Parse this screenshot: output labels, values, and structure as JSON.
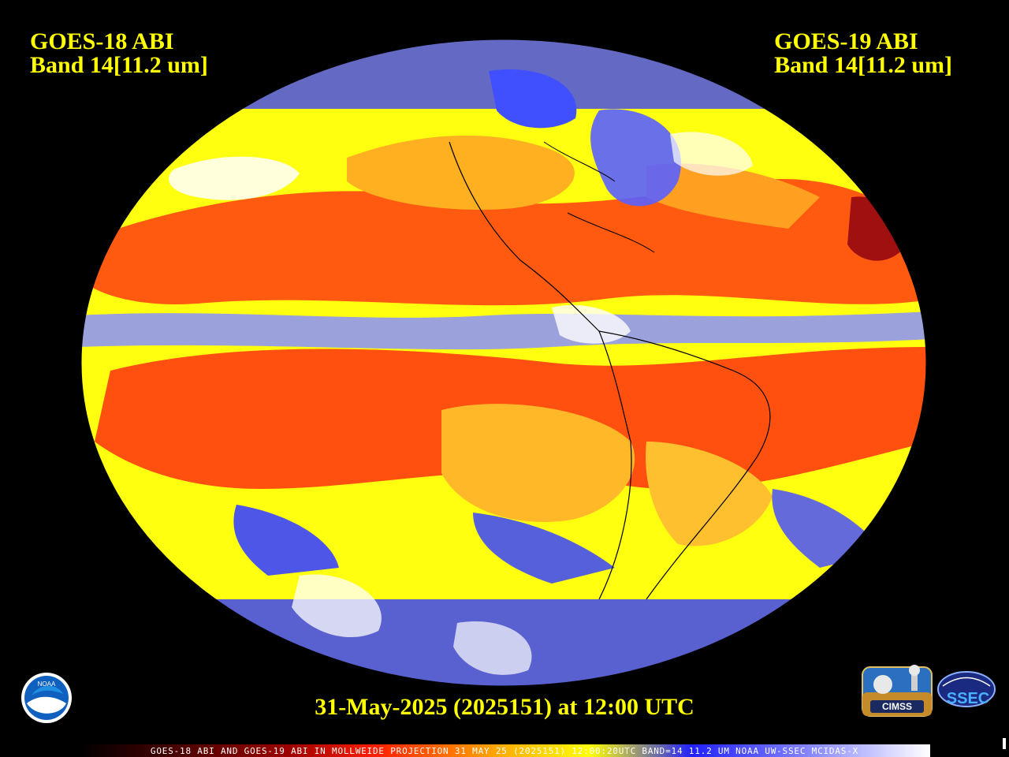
{
  "left_header": {
    "line1": "GOES-18 ABI",
    "line2": "Band 14[11.2 um]"
  },
  "right_header": {
    "line1": "GOES-19 ABI",
    "line2": "Band 14[11.2 um]"
  },
  "timestamp": "31-May-2025 (2025151) at 12:00 UTC",
  "footer_caption": "GOES-18 ABI AND GOES-19 ABI IN MOLLWEIDE PROJECTION 31 MAY 25 (2025151) 12:00:20UTC BAND=14 11.2 UM NOAA UW-SSEC MCIDAS-X",
  "logos": {
    "noaa": "NOAA",
    "cimss": "CIMSS",
    "ssec": "SSEC"
  },
  "colors": {
    "text": "#ffff00",
    "background": "#000000",
    "warm_surface": "#ff3c00",
    "mid_temp": "#ffa000",
    "cool": "#ffff00",
    "cold_cloud": "#2a2aff",
    "coldest_cloud": "#ffffff"
  }
}
